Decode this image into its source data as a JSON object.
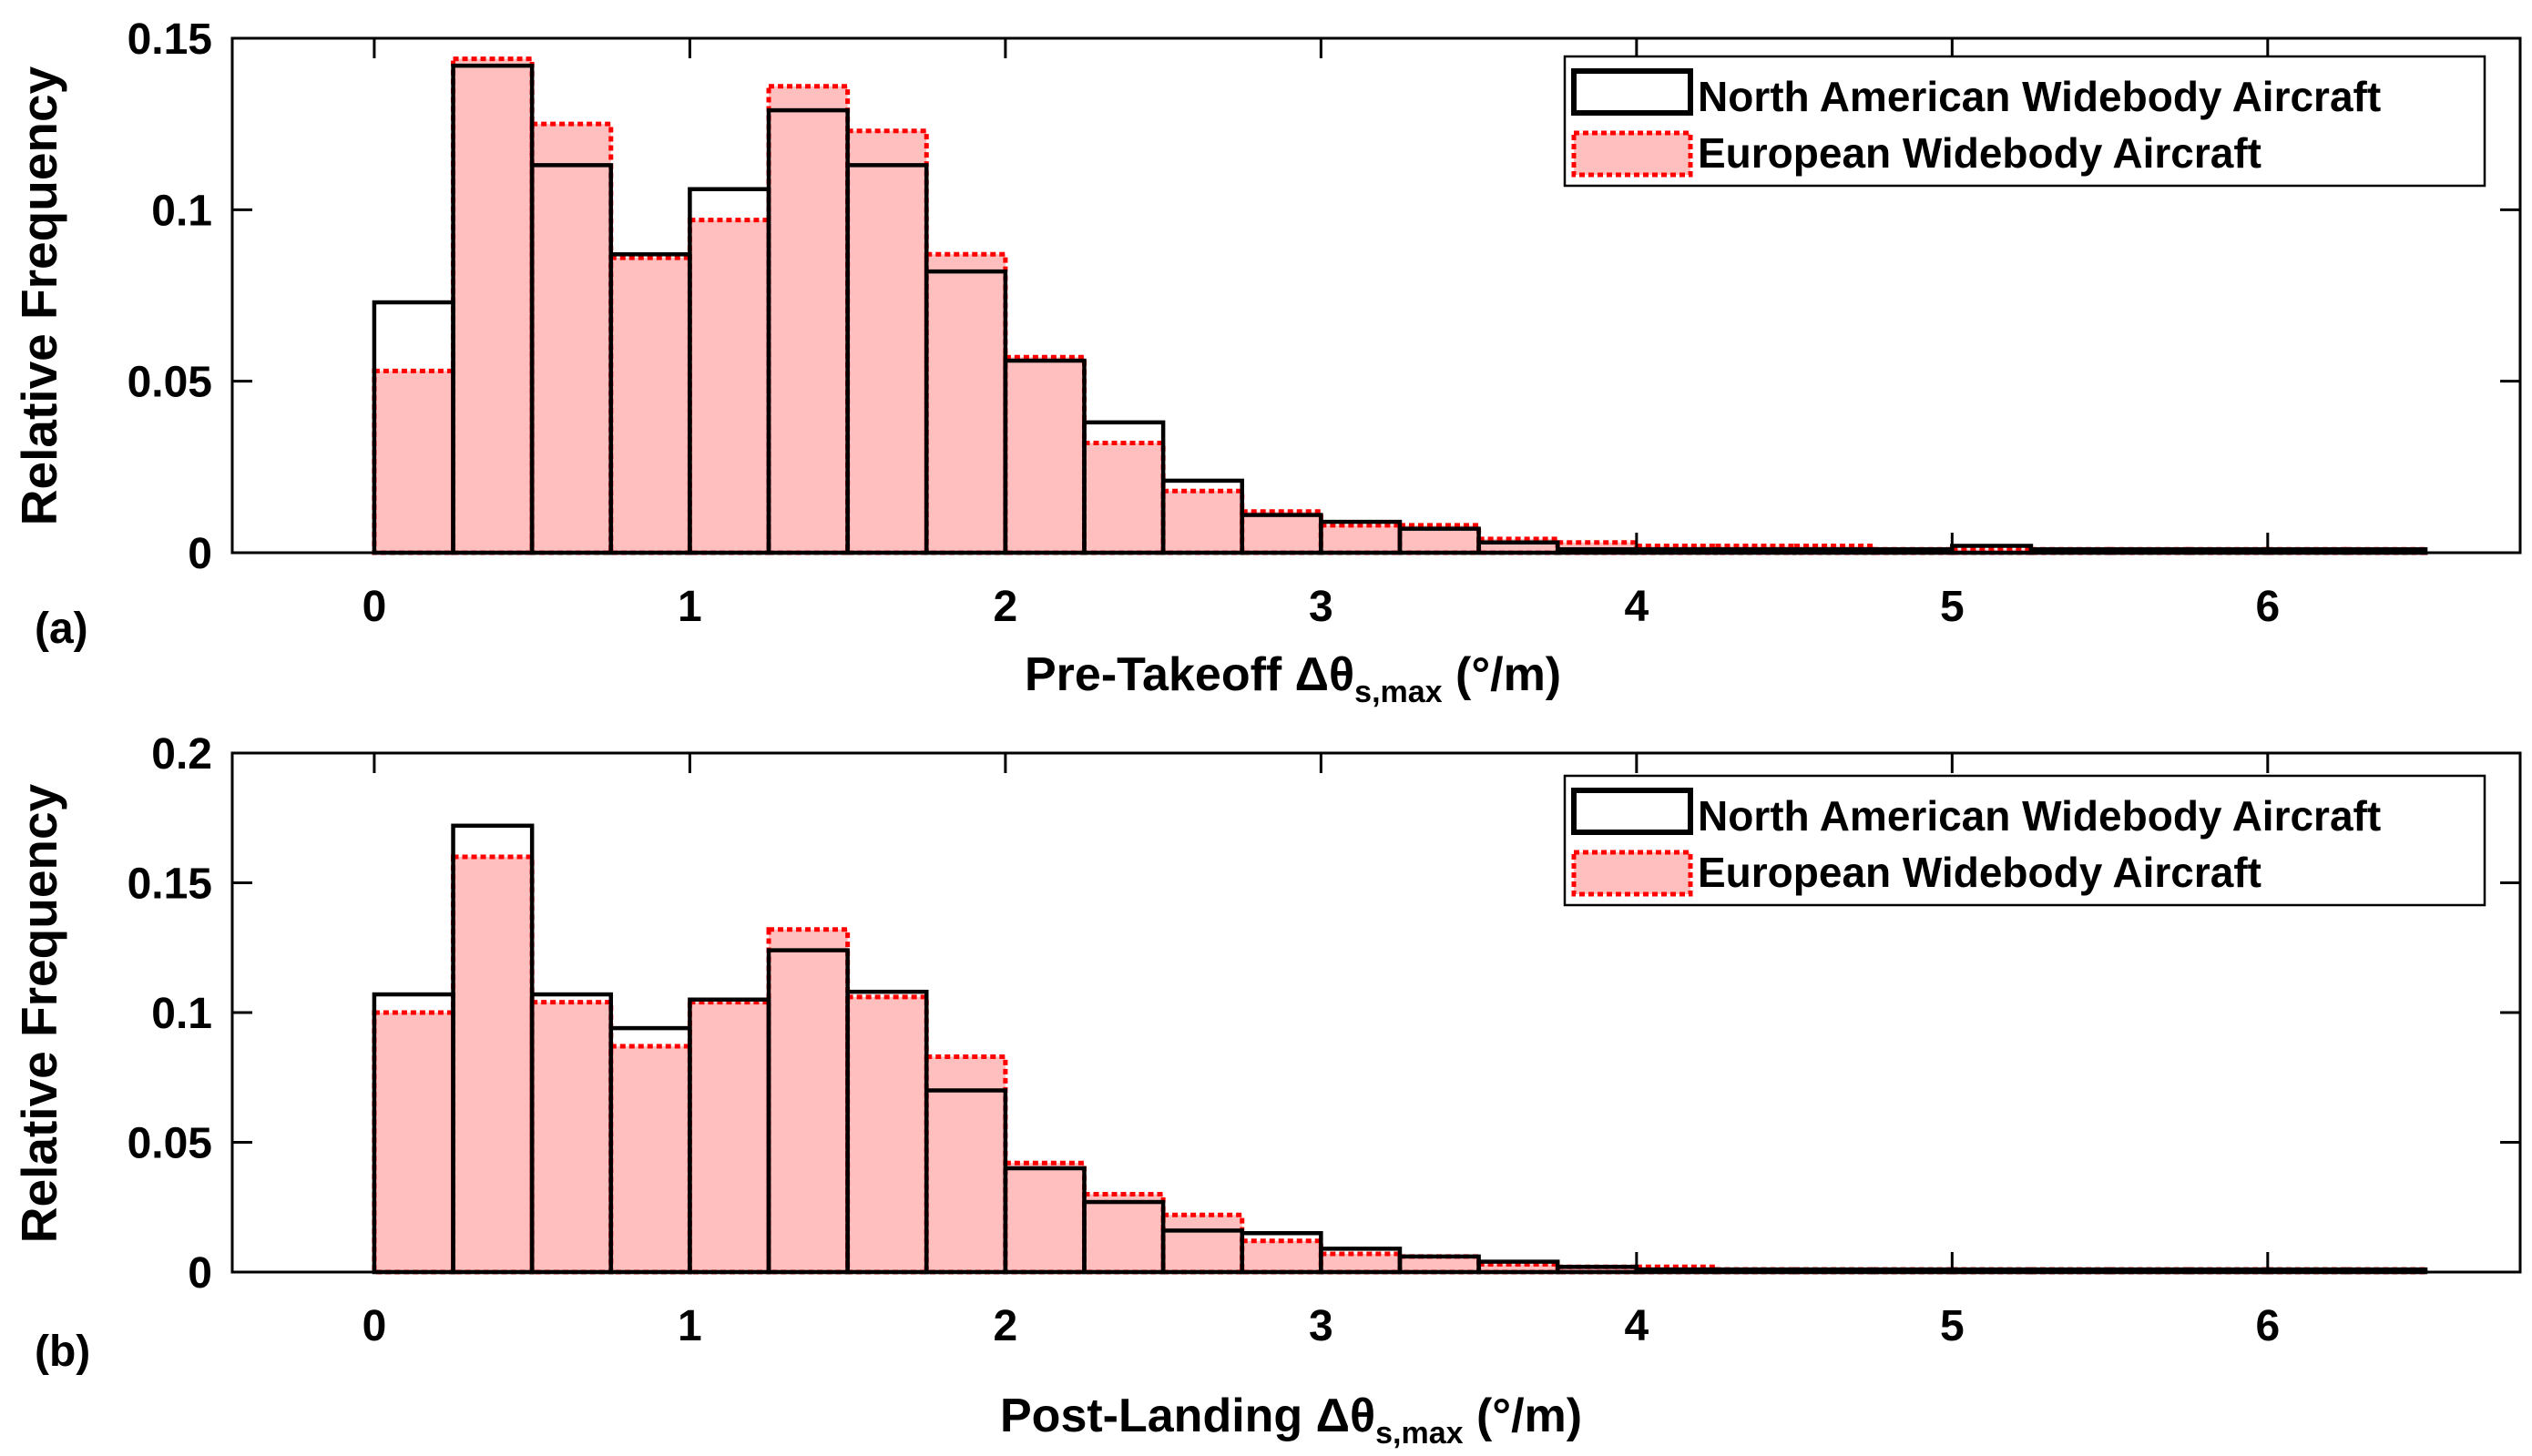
{
  "chart_data": [
    {
      "type": "bar",
      "panel_label": "(a)",
      "xlabel": {
        "main": "Pre-Takeoff Δθ",
        "sub": "s,max",
        "unit": " (°/m)"
      },
      "ylabel": "Relative Frequency",
      "xlim": [
        -0.45,
        6.8
      ],
      "ylim": [
        0,
        0.15
      ],
      "xticks": [
        0,
        1,
        2,
        3,
        4,
        5,
        6
      ],
      "xtick_labels": [
        "0",
        "1",
        "2",
        "3",
        "4",
        "5",
        "6"
      ],
      "yticks": [
        0,
        0.05,
        0.1,
        0.15
      ],
      "ytick_labels": [
        "0",
        "0.05",
        "0.1",
        "0.15"
      ],
      "bin_width": 0.25,
      "bin_edges_start": 0,
      "series": [
        {
          "name": "North American Widebody Aircraft",
          "style": "black-outline",
          "values": [
            0.073,
            0.142,
            0.113,
            0.087,
            0.106,
            0.129,
            0.113,
            0.082,
            0.056,
            0.038,
            0.021,
            0.011,
            0.009,
            0.007,
            0.003,
            0.001,
            0.001,
            0.001,
            0.001,
            0.001,
            0.002,
            0.001,
            0.001,
            0.001,
            0.001,
            0.001
          ]
        },
        {
          "name": "European Widebody Aircraft",
          "style": "red-dotted-filled",
          "values": [
            0.053,
            0.144,
            0.125,
            0.086,
            0.097,
            0.136,
            0.123,
            0.087,
            0.057,
            0.032,
            0.018,
            0.012,
            0.008,
            0.008,
            0.004,
            0.003,
            0.002,
            0.002,
            0.002,
            0.001,
            0.001,
            0.001,
            0.001,
            0.001,
            0.001,
            0.001
          ]
        }
      ],
      "legend_position": "top-right",
      "grid": false
    },
    {
      "type": "bar",
      "panel_label": "(b)",
      "xlabel": {
        "main": "Post-Landing Δθ",
        "sub": "s,max",
        "unit": " (°/m)"
      },
      "ylabel": "Relative Frequency",
      "xlim": [
        -0.45,
        6.8
      ],
      "ylim": [
        0,
        0.2
      ],
      "xticks": [
        0,
        1,
        2,
        3,
        4,
        5,
        6
      ],
      "xtick_labels": [
        "0",
        "1",
        "2",
        "3",
        "4",
        "5",
        "6"
      ],
      "yticks": [
        0,
        0.05,
        0.1,
        0.15,
        0.2
      ],
      "ytick_labels": [
        "0",
        "0.05",
        "0.1",
        "0.15",
        "0.2"
      ],
      "bin_width": 0.25,
      "bin_edges_start": 0,
      "series": [
        {
          "name": "North American Widebody Aircraft",
          "style": "black-outline",
          "values": [
            0.107,
            0.172,
            0.107,
            0.094,
            0.105,
            0.124,
            0.108,
            0.07,
            0.04,
            0.027,
            0.016,
            0.015,
            0.009,
            0.006,
            0.004,
            0.002,
            0.001,
            0.001,
            0.001,
            0.001,
            0.001,
            0.001,
            0.001,
            0.001,
            0.001,
            0.001
          ]
        },
        {
          "name": "European Widebody Aircraft",
          "style": "red-dotted-filled",
          "values": [
            0.1,
            0.16,
            0.104,
            0.087,
            0.104,
            0.132,
            0.106,
            0.083,
            0.042,
            0.03,
            0.022,
            0.012,
            0.007,
            0.006,
            0.003,
            0.002,
            0.002,
            0.001,
            0.001,
            0.001,
            0.001,
            0.001,
            0.001,
            0.001,
            0.001,
            0.001
          ]
        }
      ],
      "legend_position": "top-right",
      "grid": false
    }
  ],
  "colors": {
    "north_american_edge": "#000000",
    "european_edge": "#ff0000",
    "european_fill": "#ffbfbf"
  }
}
